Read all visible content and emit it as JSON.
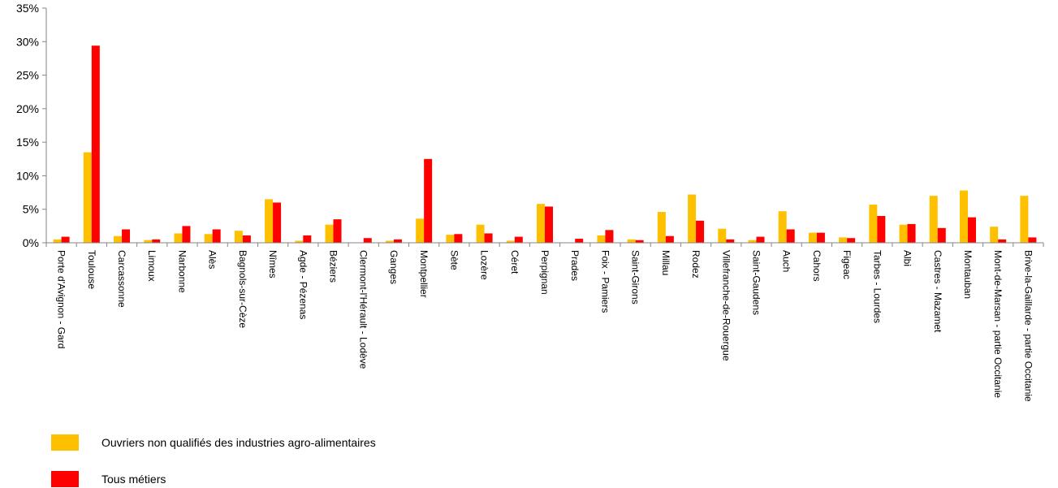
{
  "chart_data": {
    "type": "bar",
    "title": "",
    "xlabel": "",
    "ylabel": "",
    "ylim": [
      0,
      35
    ],
    "y_ticks": [
      0,
      5,
      10,
      15,
      20,
      25,
      30,
      35
    ],
    "y_tick_labels": [
      "0%",
      "5%",
      "10%",
      "15%",
      "20%",
      "25%",
      "30%",
      "35%"
    ],
    "grid": false,
    "legend_position": "bottom-left",
    "categories": [
      "Porte d'Avignon - Gard",
      "Toulouse",
      "Carcassonne",
      "Limoux",
      "Narbonne",
      "Alès",
      "Bagnols-sur-Cèze",
      "Nîmes",
      "Agde - Pézenas",
      "Béziers",
      "Clermont-l'Hérault - Lodève",
      "Ganges",
      "Montpellier",
      "Sète",
      "Lozère",
      "Céret",
      "Perpignan",
      "Prades",
      "Foix - Pamiers",
      "Saint-Girons",
      "Millau",
      "Rodez",
      "Villefranche-de-Rouergue",
      "Saint-Gaudens",
      "Auch",
      "Cahors",
      "Figeac",
      "Tarbes - Lourdes",
      "Albi",
      "Castres - Mazamet",
      "Montauban",
      "Mont-de-Marsan - partie Occitanie",
      "Brive-la-Gaillarde - partie Occitanie"
    ],
    "series": [
      {
        "name": "Ouvriers non qualifiés des industries agro-alimentaires",
        "color": "#FFC000",
        "values": [
          0.5,
          13.5,
          1.0,
          0.4,
          1.4,
          1.3,
          1.8,
          6.5,
          0.3,
          2.7,
          0.0,
          0.3,
          3.6,
          1.2,
          2.7,
          0.3,
          5.8,
          0.0,
          1.1,
          0.5,
          4.6,
          7.2,
          2.1,
          0.4,
          4.7,
          1.5,
          0.8,
          5.7,
          2.7,
          7.0,
          7.8,
          2.4,
          7.0
        ]
      },
      {
        "name": "Tous métiers",
        "color": "#FF0000",
        "values": [
          0.9,
          29.4,
          2.0,
          0.5,
          2.5,
          2.0,
          1.1,
          6.0,
          1.1,
          3.5,
          0.7,
          0.5,
          12.5,
          1.3,
          1.4,
          0.9,
          5.4,
          0.6,
          1.9,
          0.4,
          1.0,
          3.3,
          0.5,
          0.9,
          2.0,
          1.5,
          0.7,
          4.0,
          2.8,
          2.2,
          3.8,
          0.5,
          0.8
        ]
      }
    ]
  }
}
